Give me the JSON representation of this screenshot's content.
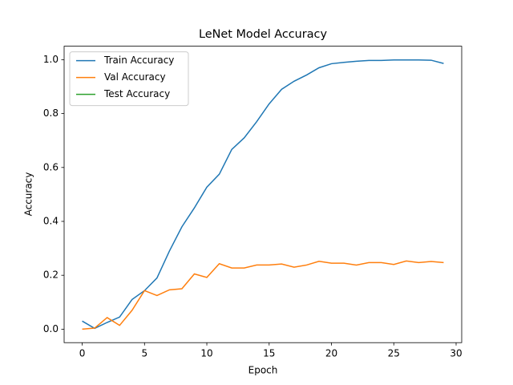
{
  "chart_data": {
    "type": "line",
    "title": "LeNet Model Accuracy",
    "x_label": "Epoch",
    "y_label": "Accuracy",
    "x": [
      0,
      1,
      2,
      3,
      4,
      5,
      6,
      7,
      8,
      9,
      10,
      11,
      12,
      13,
      14,
      15,
      16,
      17,
      18,
      19,
      20,
      21,
      22,
      23,
      24,
      25,
      26,
      27,
      28,
      29
    ],
    "series": [
      {
        "name": "Train Accuracy",
        "color": "#1f77b4",
        "values": [
          0.03,
          0.003,
          0.025,
          0.045,
          0.11,
          0.143,
          0.19,
          0.29,
          0.38,
          0.45,
          0.527,
          0.575,
          0.667,
          0.71,
          0.77,
          0.836,
          0.89,
          0.92,
          0.943,
          0.97,
          0.985,
          0.99,
          0.994,
          0.997,
          0.997,
          0.999,
          0.999,
          0.999,
          0.998,
          0.986
        ]
      },
      {
        "name": "Val Accuracy",
        "color": "#ff7f0e",
        "values": [
          0.0,
          0.004,
          0.043,
          0.014,
          0.07,
          0.143,
          0.125,
          0.146,
          0.15,
          0.205,
          0.192,
          0.243,
          0.227,
          0.227,
          0.238,
          0.238,
          0.242,
          0.23,
          0.238,
          0.252,
          0.245,
          0.245,
          0.238,
          0.247,
          0.247,
          0.24,
          0.253,
          0.247,
          0.251,
          0.247
        ]
      },
      {
        "name": "Test Accuracy",
        "color": "#2ca02c",
        "values": [
          null,
          null,
          null,
          null,
          null,
          null,
          null,
          null,
          null,
          null,
          null,
          null,
          null,
          null,
          null,
          null,
          null,
          null,
          null,
          null,
          null,
          null,
          null,
          null,
          null,
          null,
          null,
          null,
          null,
          null
        ]
      }
    ],
    "xlim": [
      -1.45,
      30.45
    ],
    "xticks": [
      0,
      5,
      10,
      15,
      20,
      25,
      30
    ],
    "ylim": [
      -0.05,
      1.05
    ],
    "yticks": [
      {
        "value": 0,
        "label": "0.0"
      },
      {
        "value": 0.2,
        "label": "0.2"
      },
      {
        "value": 0.4,
        "label": "0.4"
      },
      {
        "value": 0.6,
        "label": "0.6"
      },
      {
        "value": 0.8,
        "label": "0.8"
      },
      {
        "value": 1,
        "label": "1.0"
      }
    ],
    "legend": "upper left",
    "grid": false
  }
}
